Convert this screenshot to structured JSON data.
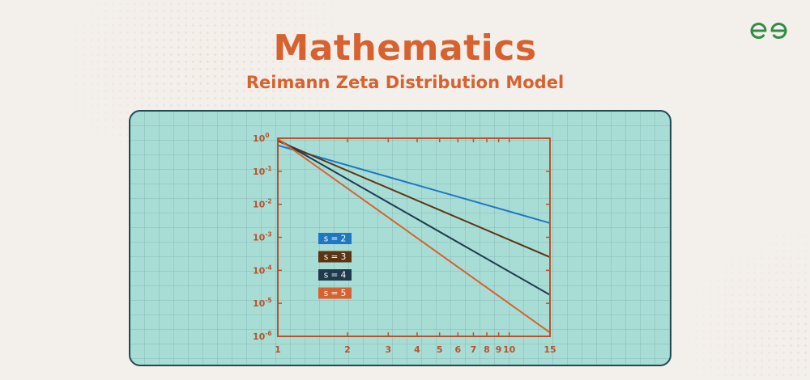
{
  "header": {
    "title": "Mathematics",
    "subtitle": "Reimann Zeta Distribution Model",
    "logo": "geeksforgeeks-logo-icon"
  },
  "colors": {
    "accent": "#d8622f",
    "logo": "#2f8d46",
    "panel": "#a8ddd6",
    "panel_border": "#1f4a55",
    "axis": "#b9522a"
  },
  "chart_data": {
    "type": "line",
    "title": "",
    "xlabel": "",
    "ylabel": "",
    "xscale": "log",
    "yscale": "log",
    "xlim": [
      1,
      15
    ],
    "ylim": [
      1e-06,
      1
    ],
    "x_ticks": [
      1,
      2,
      3,
      4,
      5,
      6,
      7,
      8,
      9,
      10,
      15
    ],
    "x_tick_labels": [
      "1",
      "2",
      "3",
      "4",
      "5",
      "6",
      "7",
      "8",
      "9",
      "10",
      "15"
    ],
    "y_ticks": [
      1,
      0.1,
      0.01,
      0.001,
      0.0001,
      1e-05,
      1e-06
    ],
    "y_tick_labels": [
      {
        "base": "10",
        "exp": "0"
      },
      {
        "base": "10",
        "exp": "-1"
      },
      {
        "base": "10",
        "exp": "-2"
      },
      {
        "base": "10",
        "exp": "-3"
      },
      {
        "base": "10",
        "exp": "-4"
      },
      {
        "base": "10",
        "exp": "-5"
      },
      {
        "base": "10",
        "exp": "-6"
      }
    ],
    "grid": true,
    "legend_position": "left-middle",
    "series": [
      {
        "name": "s = 2",
        "color": "#1f77c4",
        "x": [
          1,
          15
        ],
        "y": [
          0.608,
          0.0027
        ]
      },
      {
        "name": "s = 3",
        "color": "#5c3412",
        "x": [
          1,
          15
        ],
        "y": [
          0.832,
          0.00025
        ]
      },
      {
        "name": "s = 4",
        "color": "#1f3a4d",
        "x": [
          1,
          15
        ],
        "y": [
          0.924,
          1.8e-05
        ]
      },
      {
        "name": "s = 5",
        "color": "#d8622f",
        "x": [
          1,
          15
        ],
        "y": [
          0.964,
          1.3e-06
        ]
      }
    ]
  }
}
